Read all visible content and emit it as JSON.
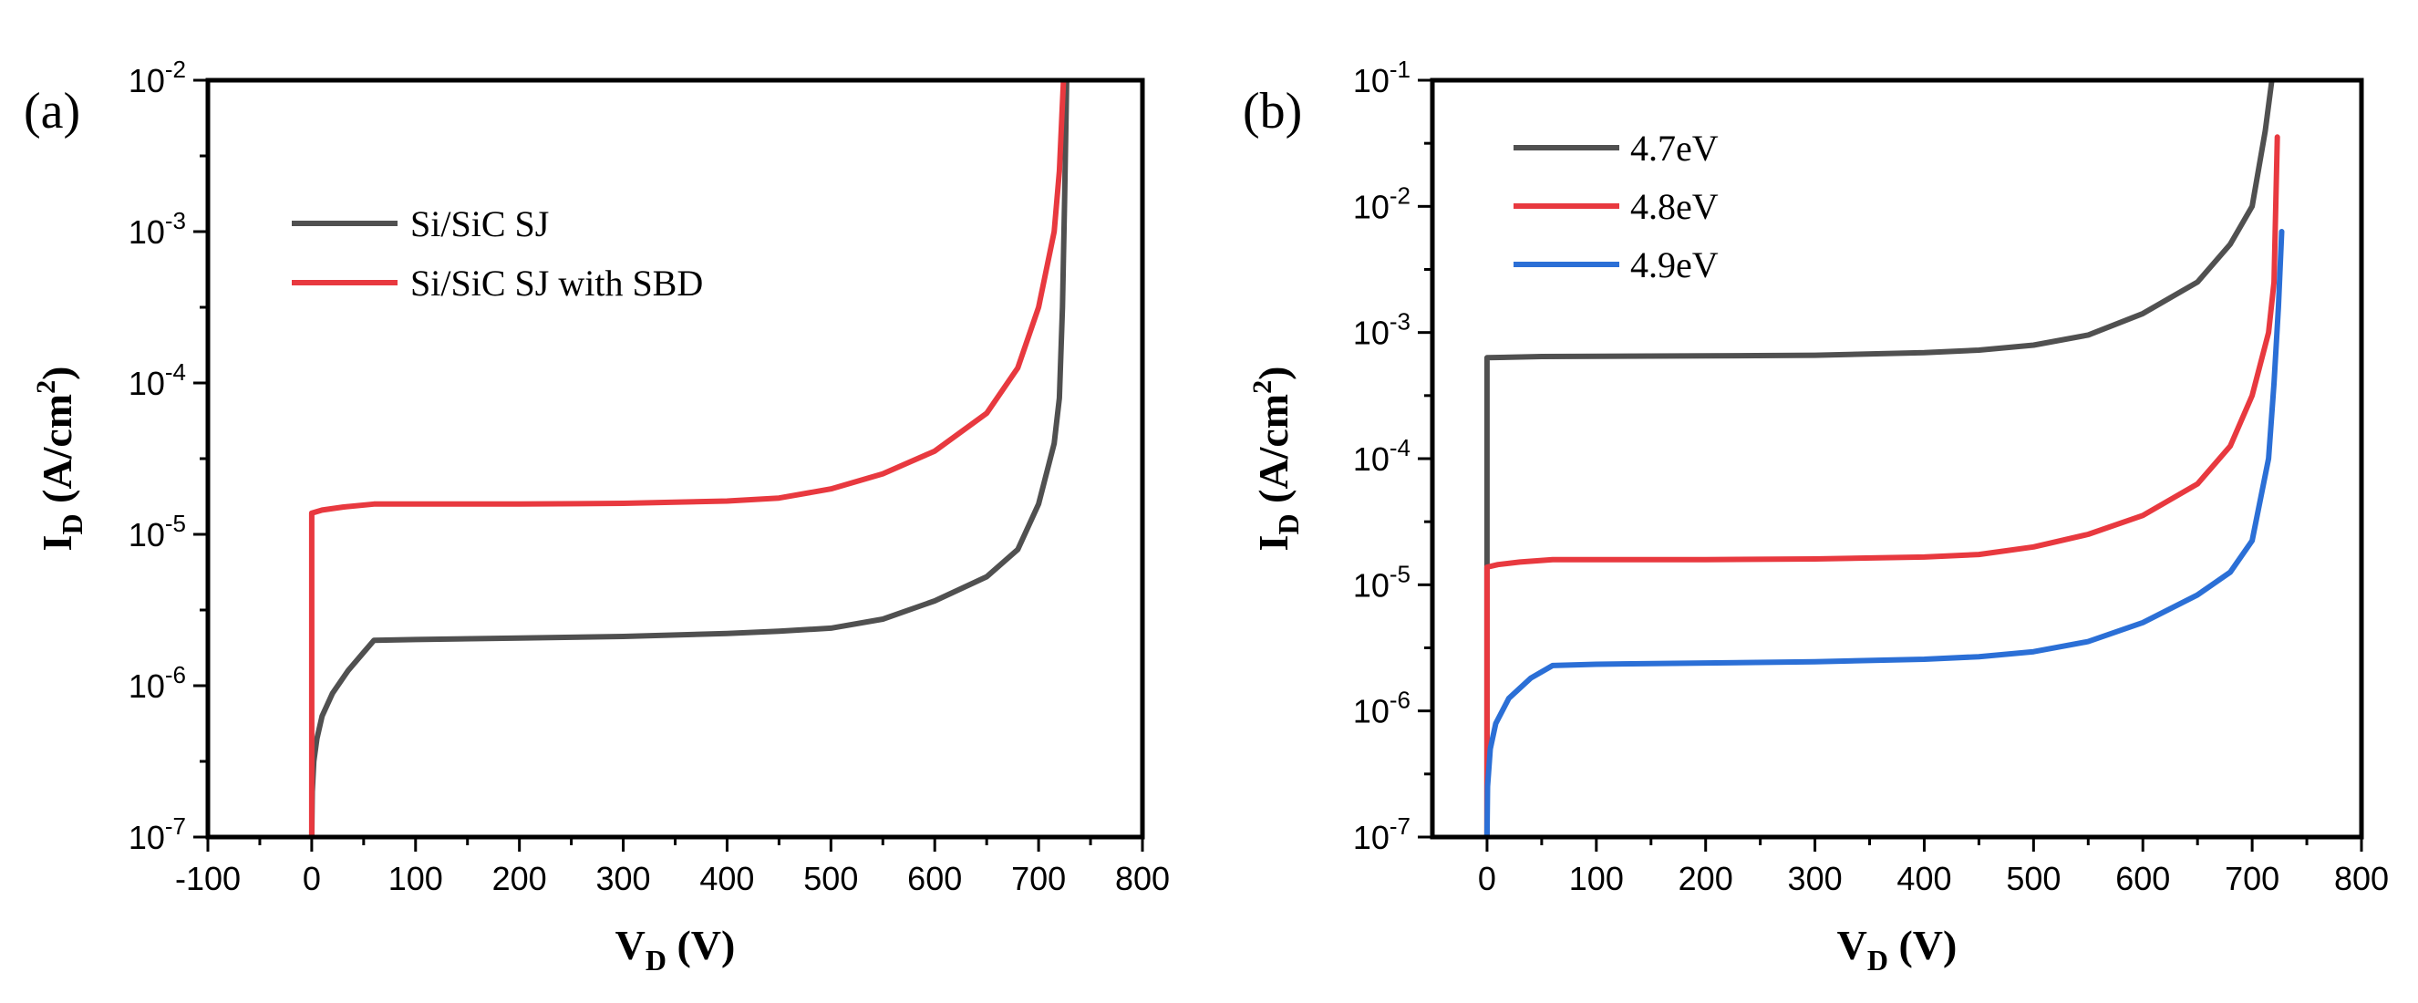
{
  "chart_data": [
    {
      "type": "line",
      "panel_label": "(a)",
      "xlabel_main": "V",
      "xlabel_sub": "D",
      "xlabel_unit": " (V)",
      "ylabel_main": "I",
      "ylabel_sub": "D",
      "ylabel_unit_pre": " (A/cm",
      "ylabel_unit_sup": "2",
      "ylabel_unit_post": ")",
      "yscale": "log",
      "xlim": [
        -100,
        800
      ],
      "ylim_exp": [
        -7,
        -2
      ],
      "xticks": [
        -100,
        0,
        100,
        200,
        300,
        400,
        500,
        600,
        700,
        800
      ],
      "ytick_base": "10",
      "ytick_exponents": [
        "-7",
        "-6",
        "-5",
        "-4",
        "-3",
        "-2"
      ],
      "legend_position": "upper-left",
      "series": [
        {
          "name": "Si/SiC SJ",
          "color": "#505050",
          "points": [
            [
              0,
              -7
            ],
            [
              0.5,
              -6.7
            ],
            [
              2,
              -6.5
            ],
            [
              5,
              -6.35
            ],
            [
              10,
              -6.2
            ],
            [
              20,
              -6.05
            ],
            [
              35,
              -5.9
            ],
            [
              50,
              -5.78
            ],
            [
              60,
              -5.7
            ],
            [
              100,
              -5.695
            ],
            [
              200,
              -5.685
            ],
            [
              300,
              -5.675
            ],
            [
              400,
              -5.655
            ],
            [
              450,
              -5.64
            ],
            [
              500,
              -5.62
            ],
            [
              550,
              -5.56
            ],
            [
              600,
              -5.44
            ],
            [
              650,
              -5.28
            ],
            [
              680,
              -5.1
            ],
            [
              700,
              -4.8
            ],
            [
              715,
              -4.4
            ],
            [
              720,
              -4.1
            ],
            [
              723,
              -3.5
            ],
            [
              725,
              -2.8
            ],
            [
              727,
              -2.0
            ]
          ]
        },
        {
          "name": "Si/SiC SJ with SBD",
          "color": "#e8393f",
          "points": [
            [
              0,
              -7
            ],
            [
              0,
              -4.86
            ],
            [
              10,
              -4.84
            ],
            [
              30,
              -4.82
            ],
            [
              60,
              -4.8
            ],
            [
              100,
              -4.8
            ],
            [
              200,
              -4.8
            ],
            [
              300,
              -4.795
            ],
            [
              400,
              -4.78
            ],
            [
              450,
              -4.76
            ],
            [
              500,
              -4.7
            ],
            [
              550,
              -4.6
            ],
            [
              600,
              -4.45
            ],
            [
              650,
              -4.2
            ],
            [
              680,
              -3.9
            ],
            [
              700,
              -3.5
            ],
            [
              715,
              -3.0
            ],
            [
              720,
              -2.6
            ],
            [
              724,
              -2.0
            ]
          ]
        }
      ]
    },
    {
      "type": "line",
      "panel_label": "(b)",
      "xlabel_main": "V",
      "xlabel_sub": "D",
      "xlabel_unit": " (V)",
      "ylabel_main": "I",
      "ylabel_sub": "D",
      "ylabel_unit_pre": " (A/cm",
      "ylabel_unit_sup": "2",
      "ylabel_unit_post": ")",
      "yscale": "log",
      "xlim": [
        -50,
        800
      ],
      "ylim_exp": [
        -7,
        -1
      ],
      "xticks": [
        0,
        100,
        200,
        300,
        400,
        500,
        600,
        700,
        800
      ],
      "ytick_base": "10",
      "ytick_exponents": [
        "-7",
        "-6",
        "-5",
        "-4",
        "-3",
        "-2",
        "-1"
      ],
      "legend_position": "upper-left",
      "series": [
        {
          "name": "4.7eV",
          "color": "#505050",
          "points": [
            [
              0,
              -7
            ],
            [
              0,
              -3.2
            ],
            [
              50,
              -3.19
            ],
            [
              100,
              -3.188
            ],
            [
              200,
              -3.185
            ],
            [
              300,
              -3.18
            ],
            [
              400,
              -3.16
            ],
            [
              450,
              -3.14
            ],
            [
              500,
              -3.1
            ],
            [
              550,
              -3.02
            ],
            [
              600,
              -2.85
            ],
            [
              650,
              -2.6
            ],
            [
              680,
              -2.3
            ],
            [
              700,
              -2.0
            ],
            [
              712,
              -1.4
            ],
            [
              718,
              -1.0
            ]
          ]
        },
        {
          "name": "4.8eV",
          "color": "#e8393f",
          "points": [
            [
              0,
              -7
            ],
            [
              0,
              -4.86
            ],
            [
              10,
              -4.84
            ],
            [
              30,
              -4.82
            ],
            [
              60,
              -4.8
            ],
            [
              100,
              -4.8
            ],
            [
              200,
              -4.8
            ],
            [
              300,
              -4.795
            ],
            [
              400,
              -4.78
            ],
            [
              450,
              -4.76
            ],
            [
              500,
              -4.7
            ],
            [
              550,
              -4.6
            ],
            [
              600,
              -4.45
            ],
            [
              650,
              -4.2
            ],
            [
              680,
              -3.9
            ],
            [
              700,
              -3.5
            ],
            [
              715,
              -3.0
            ],
            [
              720,
              -2.6
            ],
            [
              723,
              -1.45
            ]
          ]
        },
        {
          "name": "4.9eV",
          "color": "#2b6fd6",
          "points": [
            [
              0,
              -7
            ],
            [
              0.5,
              -6.6
            ],
            [
              3,
              -6.3
            ],
            [
              8,
              -6.1
            ],
            [
              20,
              -5.9
            ],
            [
              40,
              -5.74
            ],
            [
              60,
              -5.64
            ],
            [
              100,
              -5.63
            ],
            [
              200,
              -5.62
            ],
            [
              300,
              -5.61
            ],
            [
              400,
              -5.59
            ],
            [
              450,
              -5.57
            ],
            [
              500,
              -5.53
            ],
            [
              550,
              -5.45
            ],
            [
              600,
              -5.3
            ],
            [
              650,
              -5.08
            ],
            [
              680,
              -4.9
            ],
            [
              700,
              -4.65
            ],
            [
              715,
              -4.0
            ],
            [
              720,
              -3.4
            ],
            [
              724,
              -2.8
            ],
            [
              727,
              -2.2
            ]
          ]
        }
      ]
    }
  ]
}
